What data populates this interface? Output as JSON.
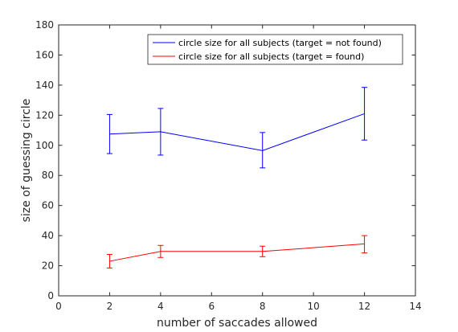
{
  "chart_data": {
    "type": "line",
    "xlabel": "number of saccades allowed",
    "ylabel": "size of guessing circle",
    "xlim": [
      0,
      14
    ],
    "ylim": [
      0,
      180
    ],
    "xticks": [
      0,
      2,
      4,
      6,
      8,
      10,
      12,
      14
    ],
    "yticks": [
      0,
      20,
      40,
      60,
      80,
      100,
      120,
      140,
      160,
      180
    ],
    "grid": false,
    "legend_position": "top-right",
    "x": [
      2,
      4,
      8,
      12
    ],
    "series": [
      {
        "name": "circle size for all subjects (target = not found)",
        "color": "#0000ff",
        "values": [
          107.5,
          109,
          96.5,
          121
        ],
        "err_lower": [
          94.5,
          93.5,
          85,
          103.5
        ],
        "err_upper": [
          120.5,
          124.5,
          108.5,
          138.5
        ]
      },
      {
        "name": "circle size for all subjects (target = found)",
        "color": "#ff0000",
        "values": [
          23,
          29.5,
          29.5,
          34.5
        ],
        "err_lower": [
          18.5,
          25.5,
          26,
          28.5
        ],
        "err_upper": [
          27.5,
          33.5,
          33,
          40
        ]
      }
    ]
  }
}
